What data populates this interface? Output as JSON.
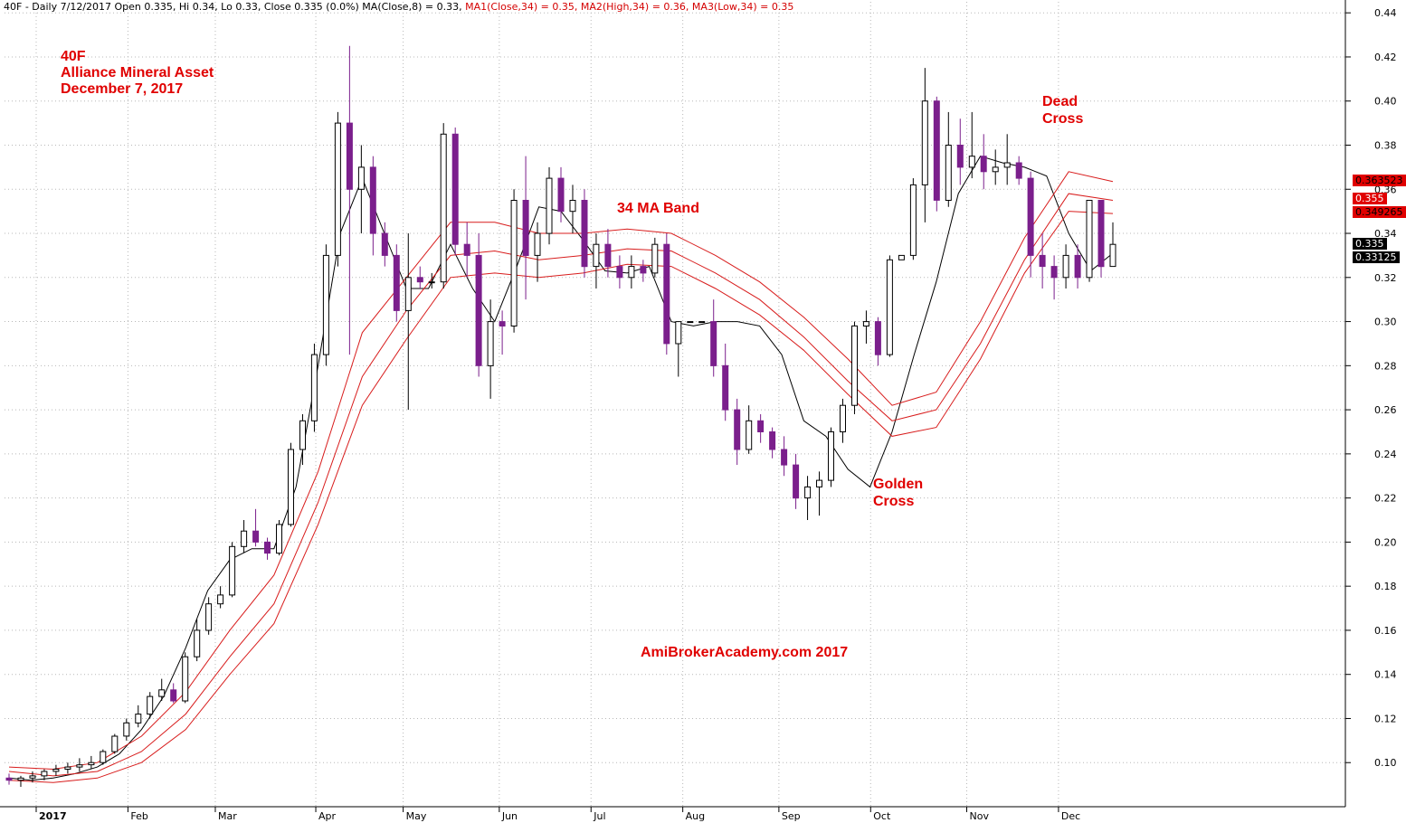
{
  "header": {
    "symbol_line": "40F - Daily 7/12/2017 Open 0.335, Hi 0.34, Lo 0.33, Close 0.335 (0.0%) MA(Close,8) = 0.33,",
    "ma1": "MA1(Close,34) = 0.35,",
    "ma2": "MA2(High,34) = 0.36,",
    "ma3": "MA3(Low,34) = 0.35"
  },
  "annotations": {
    "ticker": "40F",
    "company": "Alliance Mineral Asset",
    "date": "December 7, 2017",
    "band": "34 MA Band",
    "dead_1": "Dead",
    "dead_2": "Cross",
    "golden_1": "Golden",
    "golden_2": "Cross",
    "watermark": "AmiBrokerAcademy.com 2017"
  },
  "price_tags": {
    "ma2": "0.363523",
    "ma1": "0.355",
    "ma3": "0.349265",
    "close": "0.335",
    "ma8": "0.33125"
  },
  "colors": {
    "candle": "#7b1f8c",
    "ma_band": "#d81c1c",
    "ma8": "#000000",
    "annotation": "#e00000",
    "grid": "#b8b8b8"
  },
  "chart_data": {
    "type": "candlestick",
    "y_ticks": [
      "0.10",
      "0.12",
      "0.14",
      "0.16",
      "0.18",
      "0.20",
      "0.22",
      "0.24",
      "0.26",
      "0.28",
      "0.30",
      "0.32",
      "0.34",
      "0.36",
      "0.38",
      "0.40",
      "0.42",
      "0.44"
    ],
    "ylim": [
      0.08,
      0.445
    ],
    "x_ticks": [
      "2017",
      "Feb",
      "Mar",
      "Apr",
      "May",
      "Jun",
      "Jul",
      "Aug",
      "Sep",
      "Oct",
      "Nov",
      "Dec"
    ],
    "series": [
      {
        "name": "MA(Close,8)",
        "values": [
          [
            0,
            0.093
          ],
          [
            5,
            0.092
          ],
          [
            10,
            0.093
          ],
          [
            15,
            0.095
          ],
          [
            20,
            0.098
          ],
          [
            25,
            0.104
          ],
          [
            30,
            0.115
          ],
          [
            35,
            0.13
          ],
          [
            40,
            0.152
          ],
          [
            45,
            0.178
          ],
          [
            50,
            0.192
          ],
          [
            55,
            0.197
          ],
          [
            60,
            0.197
          ],
          [
            65,
            0.225
          ],
          [
            70,
            0.28
          ],
          [
            75,
            0.34
          ],
          [
            80,
            0.365
          ],
          [
            85,
            0.34
          ],
          [
            90,
            0.315
          ],
          [
            95,
            0.315
          ],
          [
            100,
            0.335
          ],
          [
            105,
            0.315
          ],
          [
            110,
            0.3
          ],
          [
            115,
            0.325
          ],
          [
            120,
            0.352
          ],
          [
            125,
            0.35
          ],
          [
            130,
            0.337
          ],
          [
            135,
            0.323
          ],
          [
            140,
            0.322
          ],
          [
            145,
            0.325
          ],
          [
            150,
            0.3
          ],
          [
            155,
            0.298
          ],
          [
            160,
            0.3
          ],
          [
            165,
            0.3
          ],
          [
            170,
            0.298
          ],
          [
            175,
            0.285
          ],
          [
            180,
            0.255
          ],
          [
            185,
            0.248
          ],
          [
            190,
            0.233
          ],
          [
            195,
            0.225
          ],
          [
            200,
            0.25
          ],
          [
            205,
            0.285
          ],
          [
            210,
            0.318
          ],
          [
            215,
            0.358
          ],
          [
            220,
            0.375
          ],
          [
            225,
            0.372
          ],
          [
            230,
            0.37
          ],
          [
            235,
            0.366
          ],
          [
            240,
            0.34
          ],
          [
            245,
            0.323
          ],
          [
            250,
            0.331
          ]
        ]
      },
      {
        "name": "MA1(Close,34)",
        "values": [
          [
            0,
            0.096
          ],
          [
            10,
            0.094
          ],
          [
            20,
            0.096
          ],
          [
            30,
            0.105
          ],
          [
            40,
            0.122
          ],
          [
            50,
            0.148
          ],
          [
            60,
            0.172
          ],
          [
            70,
            0.218
          ],
          [
            80,
            0.275
          ],
          [
            90,
            0.305
          ],
          [
            100,
            0.33
          ],
          [
            110,
            0.332
          ],
          [
            120,
            0.328
          ],
          [
            130,
            0.33
          ],
          [
            140,
            0.333
          ],
          [
            150,
            0.332
          ],
          [
            160,
            0.322
          ],
          [
            170,
            0.31
          ],
          [
            180,
            0.293
          ],
          [
            190,
            0.273
          ],
          [
            200,
            0.255
          ],
          [
            210,
            0.26
          ],
          [
            220,
            0.29
          ],
          [
            230,
            0.328
          ],
          [
            240,
            0.358
          ],
          [
            250,
            0.355
          ]
        ]
      },
      {
        "name": "MA2(High,34)",
        "values": [
          [
            0,
            0.098
          ],
          [
            10,
            0.097
          ],
          [
            20,
            0.1
          ],
          [
            30,
            0.112
          ],
          [
            40,
            0.132
          ],
          [
            50,
            0.16
          ],
          [
            60,
            0.185
          ],
          [
            70,
            0.232
          ],
          [
            80,
            0.295
          ],
          [
            90,
            0.32
          ],
          [
            100,
            0.345
          ],
          [
            110,
            0.345
          ],
          [
            120,
            0.34
          ],
          [
            130,
            0.34
          ],
          [
            140,
            0.342
          ],
          [
            150,
            0.34
          ],
          [
            160,
            0.33
          ],
          [
            170,
            0.318
          ],
          [
            180,
            0.302
          ],
          [
            190,
            0.283
          ],
          [
            200,
            0.262
          ],
          [
            210,
            0.268
          ],
          [
            220,
            0.3
          ],
          [
            230,
            0.338
          ],
          [
            240,
            0.368
          ],
          [
            250,
            0.3635
          ]
        ]
      },
      {
        "name": "MA3(Low,34)",
        "values": [
          [
            0,
            0.092
          ],
          [
            10,
            0.091
          ],
          [
            20,
            0.093
          ],
          [
            30,
            0.1
          ],
          [
            40,
            0.115
          ],
          [
            50,
            0.14
          ],
          [
            60,
            0.163
          ],
          [
            70,
            0.208
          ],
          [
            80,
            0.262
          ],
          [
            90,
            0.292
          ],
          [
            100,
            0.32
          ],
          [
            110,
            0.322
          ],
          [
            120,
            0.32
          ],
          [
            130,
            0.322
          ],
          [
            140,
            0.326
          ],
          [
            150,
            0.325
          ],
          [
            160,
            0.315
          ],
          [
            170,
            0.303
          ],
          [
            180,
            0.287
          ],
          [
            190,
            0.267
          ],
          [
            200,
            0.248
          ],
          [
            210,
            0.252
          ],
          [
            220,
            0.283
          ],
          [
            230,
            0.322
          ],
          [
            240,
            0.35
          ],
          [
            250,
            0.349
          ]
        ]
      }
    ],
    "candles": [
      [
        0.093,
        0.095,
        0.09,
        0.092
      ],
      [
        0.092,
        0.094,
        0.089,
        0.093
      ],
      [
        0.093,
        0.096,
        0.091,
        0.094
      ],
      [
        0.094,
        0.097,
        0.092,
        0.096
      ],
      [
        0.096,
        0.099,
        0.094,
        0.097
      ],
      [
        0.097,
        0.1,
        0.095,
        0.098
      ],
      [
        0.098,
        0.102,
        0.096,
        0.099
      ],
      [
        0.099,
        0.103,
        0.097,
        0.1
      ],
      [
        0.1,
        0.106,
        0.099,
        0.105
      ],
      [
        0.105,
        0.113,
        0.104,
        0.112
      ],
      [
        0.112,
        0.12,
        0.11,
        0.118
      ],
      [
        0.118,
        0.126,
        0.116,
        0.122
      ],
      [
        0.122,
        0.132,
        0.12,
        0.13
      ],
      [
        0.13,
        0.138,
        0.128,
        0.133
      ],
      [
        0.133,
        0.136,
        0.127,
        0.128
      ],
      [
        0.128,
        0.15,
        0.127,
        0.148
      ],
      [
        0.148,
        0.165,
        0.146,
        0.16
      ],
      [
        0.16,
        0.175,
        0.158,
        0.172
      ],
      [
        0.172,
        0.18,
        0.17,
        0.176
      ],
      [
        0.176,
        0.2,
        0.175,
        0.198
      ],
      [
        0.198,
        0.21,
        0.195,
        0.205
      ],
      [
        0.205,
        0.215,
        0.198,
        0.2
      ],
      [
        0.2,
        0.202,
        0.192,
        0.195
      ],
      [
        0.195,
        0.21,
        0.194,
        0.208
      ],
      [
        0.208,
        0.245,
        0.207,
        0.242
      ],
      [
        0.242,
        0.258,
        0.235,
        0.255
      ],
      [
        0.255,
        0.29,
        0.25,
        0.285
      ],
      [
        0.285,
        0.335,
        0.28,
        0.33
      ],
      [
        0.33,
        0.395,
        0.325,
        0.39
      ],
      [
        0.39,
        0.425,
        0.285,
        0.36
      ],
      [
        0.36,
        0.38,
        0.34,
        0.37
      ],
      [
        0.37,
        0.375,
        0.33,
        0.34
      ],
      [
        0.34,
        0.345,
        0.325,
        0.33
      ],
      [
        0.33,
        0.335,
        0.3,
        0.305
      ],
      [
        0.305,
        0.34,
        0.26,
        0.32
      ],
      [
        0.32,
        0.325,
        0.315,
        0.318
      ],
      [
        0.318,
        0.322,
        0.315,
        0.318
      ],
      [
        0.318,
        0.39,
        0.315,
        0.385
      ],
      [
        0.385,
        0.388,
        0.33,
        0.335
      ],
      [
        0.335,
        0.345,
        0.32,
        0.33
      ],
      [
        0.33,
        0.34,
        0.275,
        0.28
      ],
      [
        0.28,
        0.31,
        0.265,
        0.3
      ],
      [
        0.3,
        0.305,
        0.285,
        0.298
      ],
      [
        0.298,
        0.36,
        0.295,
        0.355
      ],
      [
        0.355,
        0.375,
        0.31,
        0.33
      ],
      [
        0.33,
        0.345,
        0.318,
        0.34
      ],
      [
        0.34,
        0.37,
        0.335,
        0.365
      ],
      [
        0.365,
        0.37,
        0.345,
        0.35
      ],
      [
        0.35,
        0.362,
        0.34,
        0.355
      ],
      [
        0.355,
        0.36,
        0.32,
        0.325
      ],
      [
        0.325,
        0.34,
        0.315,
        0.335
      ],
      [
        0.335,
        0.342,
        0.32,
        0.325
      ],
      [
        0.325,
        0.33,
        0.315,
        0.32
      ],
      [
        0.32,
        0.33,
        0.315,
        0.325
      ],
      [
        0.325,
        0.328,
        0.318,
        0.322
      ],
      [
        0.322,
        0.338,
        0.32,
        0.335
      ],
      [
        0.335,
        0.34,
        0.285,
        0.29
      ],
      [
        0.29,
        0.3,
        0.275,
        0.3
      ],
      [
        0.3,
        0.3,
        0.3,
        0.3
      ],
      [
        0.3,
        0.3,
        0.3,
        0.3
      ],
      [
        0.3,
        0.31,
        0.275,
        0.28
      ],
      [
        0.28,
        0.29,
        0.255,
        0.26
      ],
      [
        0.26,
        0.265,
        0.235,
        0.242
      ],
      [
        0.242,
        0.262,
        0.24,
        0.255
      ],
      [
        0.255,
        0.258,
        0.245,
        0.25
      ],
      [
        0.25,
        0.252,
        0.238,
        0.242
      ],
      [
        0.242,
        0.248,
        0.23,
        0.235
      ],
      [
        0.235,
        0.24,
        0.215,
        0.22
      ],
      [
        0.22,
        0.23,
        0.21,
        0.225
      ],
      [
        0.225,
        0.232,
        0.212,
        0.228
      ],
      [
        0.228,
        0.252,
        0.225,
        0.25
      ],
      [
        0.25,
        0.265,
        0.245,
        0.262
      ],
      [
        0.262,
        0.3,
        0.258,
        0.298
      ],
      [
        0.298,
        0.305,
        0.29,
        0.3
      ],
      [
        0.3,
        0.302,
        0.28,
        0.285
      ],
      [
        0.285,
        0.33,
        0.284,
        0.328
      ],
      [
        0.328,
        0.33,
        0.328,
        0.33
      ],
      [
        0.33,
        0.365,
        0.328,
        0.362
      ],
      [
        0.362,
        0.415,
        0.345,
        0.4
      ],
      [
        0.4,
        0.402,
        0.35,
        0.355
      ],
      [
        0.355,
        0.395,
        0.352,
        0.38
      ],
      [
        0.38,
        0.392,
        0.362,
        0.37
      ],
      [
        0.37,
        0.395,
        0.365,
        0.375
      ],
      [
        0.375,
        0.385,
        0.36,
        0.368
      ],
      [
        0.368,
        0.378,
        0.362,
        0.37
      ],
      [
        0.37,
        0.385,
        0.362,
        0.372
      ],
      [
        0.372,
        0.375,
        0.362,
        0.365
      ],
      [
        0.365,
        0.368,
        0.32,
        0.33
      ],
      [
        0.33,
        0.34,
        0.315,
        0.325
      ],
      [
        0.325,
        0.33,
        0.31,
        0.32
      ],
      [
        0.32,
        0.335,
        0.315,
        0.33
      ],
      [
        0.33,
        0.335,
        0.315,
        0.32
      ],
      [
        0.32,
        0.355,
        0.318,
        0.355
      ],
      [
        0.355,
        0.355,
        0.32,
        0.325
      ],
      [
        0.325,
        0.345,
        0.325,
        0.335
      ]
    ]
  }
}
